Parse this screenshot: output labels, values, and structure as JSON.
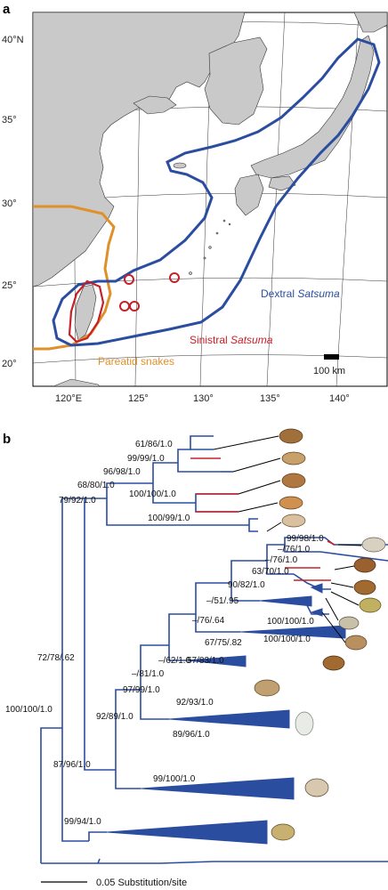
{
  "panel_a": {
    "label": "a",
    "lat_labels": [
      "40°N",
      "35°",
      "30°",
      "25°",
      "20°"
    ],
    "lon_labels": [
      "120°E",
      "125°",
      "130°",
      "135°",
      "140°"
    ],
    "legend_dextral_prefix": "Dextral ",
    "legend_dextral_italic": "Satsuma",
    "legend_sinistral_prefix": "Sinistral ",
    "legend_sinistral_italic": "Satsuma",
    "legend_snakes": "Pareatid snakes",
    "scale": "100 km",
    "colors": {
      "dextral": "#2b4da0",
      "sinistral": "#c8202a",
      "snakes": "#e0902a",
      "sea": "#ffffff",
      "land": "#c9c9c9"
    }
  },
  "panel_b": {
    "label": "b",
    "support_values": [
      "61/86/1.0",
      "99/99/1.0",
      "96/98/1.0",
      "68/80/1.0",
      "100/100/1.0",
      "79/92/1.0",
      "100/99/1.0",
      "99/98/1.0",
      "–/76/1.0",
      "–/76/1.0",
      "63/70/1.0",
      "90/82/1.0",
      "–/51/.95",
      "–/76/.64",
      "100/100/1.0",
      "67/75/.82",
      "100/100/1.0",
      "72/78/.62",
      "–/62/1.0",
      "57/83/1.0",
      "–/81/1.0",
      "97/99/1.0",
      "92/93/1.0",
      "92/89/1.0",
      "89/96/1.0",
      "100/100/1.0",
      "99/100/1.0",
      "87/96/1.0",
      "99/94/1.0"
    ],
    "scale_label": "0.05 Substitution/site",
    "colors": {
      "branch": "#2b4da0",
      "sinistral_branch": "#c8202a"
    }
  }
}
